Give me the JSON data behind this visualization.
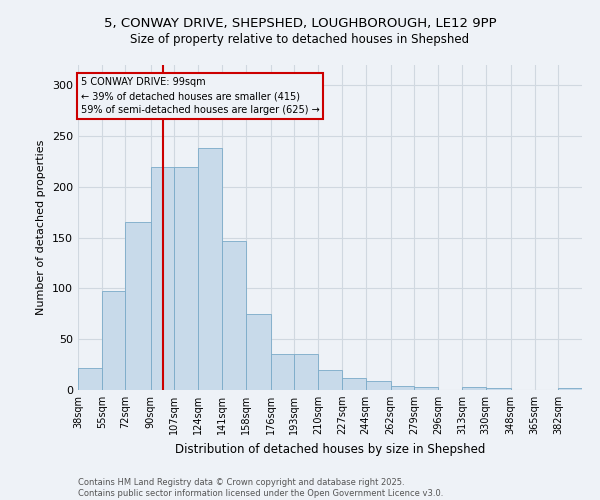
{
  "title_line1": "5, CONWAY DRIVE, SHEPSHED, LOUGHBOROUGH, LE12 9PP",
  "title_line2": "Size of property relative to detached houses in Shepshed",
  "xlabel": "Distribution of detached houses by size in Shepshed",
  "ylabel": "Number of detached properties",
  "footer_line1": "Contains HM Land Registry data © Crown copyright and database right 2025.",
  "footer_line2": "Contains public sector information licensed under the Open Government Licence v3.0.",
  "annotation_title": "5 CONWAY DRIVE: 99sqm",
  "annotation_line1": "← 39% of detached houses are smaller (415)",
  "annotation_line2": "59% of semi-detached houses are larger (625) →",
  "property_size": 99,
  "categories": [
    "38sqm",
    "55sqm",
    "72sqm",
    "90sqm",
    "107sqm",
    "124sqm",
    "141sqm",
    "158sqm",
    "176sqm",
    "193sqm",
    "210sqm",
    "227sqm",
    "244sqm",
    "262sqm",
    "279sqm",
    "296sqm",
    "313sqm",
    "330sqm",
    "348sqm",
    "365sqm",
    "382sqm"
  ],
  "bin_edges": [
    38,
    55,
    72,
    90,
    107,
    124,
    141,
    158,
    176,
    193,
    210,
    227,
    244,
    262,
    279,
    296,
    313,
    330,
    348,
    365,
    382,
    399
  ],
  "values": [
    22,
    97,
    165,
    220,
    220,
    238,
    147,
    75,
    35,
    35,
    20,
    12,
    9,
    4,
    3,
    0,
    3,
    2,
    0,
    0,
    2
  ],
  "bar_color": "#c8daea",
  "bar_edge_color": "#7aaac8",
  "vline_x": 99,
  "vline_color": "#cc0000",
  "annotation_box_color": "#cc0000",
  "background_color": "#eef2f7",
  "grid_color": "#d0d8e0",
  "ylim": [
    0,
    320
  ],
  "yticks": [
    0,
    50,
    100,
    150,
    200,
    250,
    300
  ]
}
